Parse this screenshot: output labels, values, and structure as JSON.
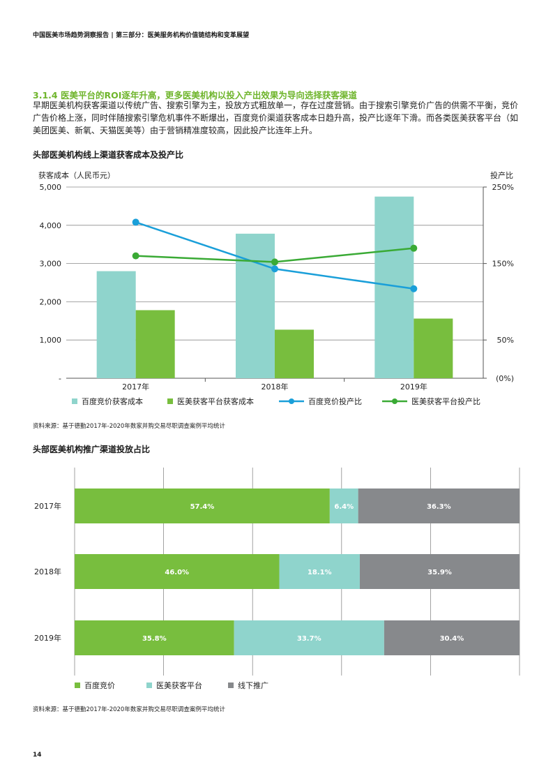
{
  "header": {
    "report_title": "中国医美市场趋势洞察报告",
    "separator": " | ",
    "part_title": "第三部分：医美服务机构价值链结构和变革展望"
  },
  "section": {
    "title": "3.1.4 医美平台的ROI逐年升高，更多医美机构以投入产出效果为导向选择获客渠道",
    "paragraph": "早期医美机构获客渠道以传统广告、搜索引擎为主，投放方式粗放单一，存在过度营销。由于搜索引擎竞价广告的供需不平衡，竞价广告价格上涨，同时伴随搜索引擎危机事件不断爆出，百度竞价渠道获客成本日趋升高，投产比逐年下滑。而各类医美获客平台（如美团医美、新氧、天猫医美等）由于营销精准度较高，因此投产比连年上升。"
  },
  "chart1": {
    "title": "头部医美机构线上渠道获客成本及投产比",
    "source": "资料来源：基于德勤2017年-2020年数家并购交易尽职调查案例平均统计"
  },
  "chart2": {
    "title": "头部医美机构推广渠道投放占比",
    "source": "资料来源：基于德勤2017年-2020年数家并购交易尽职调查案例平均统计"
  },
  "page_number": "14",
  "colors": {
    "teal": "#8fd4cc",
    "green": "#78be3e",
    "gray": "#87898c",
    "blue_line": "#1a9fd9",
    "green_line": "#3aaa35",
    "accent_title": "#6fb52c"
  },
  "chart_data": [
    {
      "type": "bar",
      "title": "头部医美机构线上渠道获客成本及投产比",
      "categories": [
        "2017年",
        "2018年",
        "2019年"
      ],
      "ylabel": "获客成本（人民币元）",
      "ylabel_right": "投产比",
      "ylim": [
        0,
        5000
      ],
      "yticks": [
        "-",
        "1,000",
        "2,000",
        "3,000",
        "4,000",
        "5,000"
      ],
      "ylim_right": [
        0,
        250
      ],
      "yticks_right": [
        "(0%)",
        "50%",
        "150%",
        "250%"
      ],
      "yticks_right_values": [
        0,
        50,
        150,
        250
      ],
      "grid": true,
      "legend_position": "bottom",
      "series": [
        {
          "name": "百度竞价获客成本",
          "kind": "bar",
          "axis": "left",
          "values": [
            2800,
            3780,
            4750
          ]
        },
        {
          "name": "医美获客平台获客成本",
          "kind": "bar",
          "axis": "left",
          "values": [
            1780,
            1270,
            1560
          ]
        },
        {
          "name": "百度竞价投产比",
          "kind": "line",
          "axis": "right",
          "values": [
            204,
            143,
            117
          ]
        },
        {
          "name": "医美获客平台投产比",
          "kind": "line",
          "axis": "right",
          "values": [
            160,
            152,
            170
          ]
        }
      ]
    },
    {
      "type": "bar",
      "orientation": "horizontal",
      "stacked": true,
      "title": "头部医美机构推广渠道投放占比",
      "categories": [
        "2017年",
        "2018年",
        "2019年"
      ],
      "legend_position": "bottom",
      "grid": true,
      "series": [
        {
          "name": "百度竞价",
          "values": [
            57.4,
            46.0,
            35.8
          ],
          "labels": [
            "57.4%",
            "46.0%",
            "35.8%"
          ]
        },
        {
          "name": "医美获客平台",
          "values": [
            6.4,
            18.1,
            33.7
          ],
          "labels": [
            "6.4%",
            "18.1%",
            "33.7%"
          ]
        },
        {
          "name": "线下推广",
          "values": [
            36.3,
            35.9,
            30.4
          ],
          "labels": [
            "36.3%",
            "35.9%",
            "30.4%"
          ]
        }
      ]
    }
  ]
}
